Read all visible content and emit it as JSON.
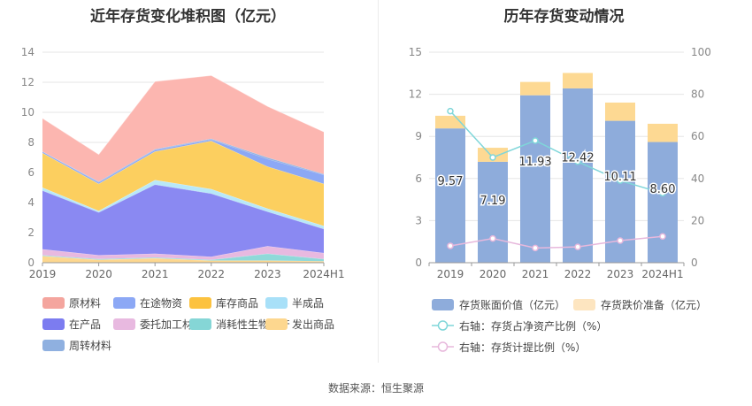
{
  "left_chart": {
    "title": "近年存货变化堆积图（亿元）",
    "chart_data": {
      "type": "area",
      "stacked": true,
      "categories": [
        "2019",
        "2020",
        "2021",
        "2022",
        "2023",
        "2024H1"
      ],
      "ylim": [
        0,
        14
      ],
      "yticks": [
        "0",
        "2",
        "4",
        "6",
        "8",
        "10",
        "12",
        "14"
      ],
      "series": [
        {
          "name": "发出商品",
          "color": "#fdd78f",
          "values": [
            0.45,
            0.2,
            0.3,
            0.15,
            0.15,
            0.1
          ]
        },
        {
          "name": "消耗性生物资产",
          "color": "#8fd9d9",
          "values": [
            0.05,
            0.05,
            0.05,
            0.05,
            0.45,
            0.15
          ]
        },
        {
          "name": "委托加工材料",
          "color": "#e8b9e0",
          "values": [
            0.4,
            0.25,
            0.25,
            0.2,
            0.5,
            0.4
          ]
        },
        {
          "name": "在产品",
          "color": "#8a89f2",
          "values": [
            3.9,
            2.85,
            4.6,
            4.2,
            2.3,
            1.6
          ]
        },
        {
          "name": "半成品",
          "color": "#b8e8f8",
          "values": [
            0.2,
            0.1,
            0.3,
            0.3,
            0.2,
            0.2
          ]
        },
        {
          "name": "库存商品",
          "color": "#fccf5f",
          "values": [
            2.3,
            1.8,
            1.9,
            3.2,
            2.8,
            2.8
          ]
        },
        {
          "name": "在途物资",
          "color": "#8ca8f5",
          "values": [
            0.1,
            0.1,
            0.1,
            0.1,
            0.5,
            0.6
          ]
        },
        {
          "name": "周转材料",
          "color": "#8fb0e0",
          "values": [
            0.0,
            0.05,
            0.05,
            0.05,
            0.1,
            0.05
          ]
        },
        {
          "name": "原材料",
          "color": "#fcb6b0",
          "values": [
            2.2,
            1.8,
            4.5,
            4.2,
            3.4,
            2.8
          ]
        }
      ],
      "legend": [
        {
          "name": "原材料",
          "color": "#f4a59e"
        },
        {
          "name": "在途物资",
          "color": "#8ca8f5"
        },
        {
          "name": "库存商品",
          "color": "#fcc23f"
        },
        {
          "name": "半成品",
          "color": "#a8e0f8"
        },
        {
          "name": "在产品",
          "color": "#7c7cf0"
        },
        {
          "name": "委托加工材料",
          "color": "#e8b9e0"
        },
        {
          "name": "消耗性生物资产",
          "color": "#85d6d6"
        },
        {
          "name": "发出商品",
          "color": "#fdd78f"
        },
        {
          "name": "周转材料",
          "color": "#8fb0e0"
        }
      ]
    }
  },
  "right_chart": {
    "title": "历年存货变动情况",
    "chart_data": {
      "type": "bar",
      "stacked": true,
      "categories": [
        "2019",
        "2020",
        "2021",
        "2022",
        "2023",
        "2024H1"
      ],
      "ylim": [
        0,
        15
      ],
      "yticks": [
        "0",
        "3",
        "6",
        "9",
        "12",
        "15"
      ],
      "y2lim": [
        0,
        100
      ],
      "y2ticks": [
        "0",
        "20",
        "40",
        "60",
        "80",
        "100"
      ],
      "series": [
        {
          "name": "存货账面价值（亿元）",
          "color": "#8eacdb",
          "values": [
            9.57,
            7.19,
            11.93,
            12.42,
            10.11,
            8.6
          ],
          "labels": [
            "9.57",
            "7.19",
            "11.93",
            "12.42",
            "10.11",
            "8.60"
          ]
        },
        {
          "name": "存货跌价准备（亿元）",
          "color": "#fdd993",
          "values": [
            0.9,
            1.0,
            0.95,
            1.1,
            1.3,
            1.3
          ]
        }
      ],
      "lines": [
        {
          "name": "右轴：存货占净资产比例（%）",
          "color": "#7fd6d9",
          "values": [
            72,
            50,
            58,
            48,
            39,
            33
          ]
        },
        {
          "name": "右轴：存货计提比例（%）",
          "color": "#e7b8dc",
          "values": [
            8,
            11.5,
            7,
            7.5,
            10.5,
            12.5
          ]
        }
      ],
      "legend": [
        {
          "name": "存货账面价值（亿元）",
          "color": "#8eacdb",
          "kind": "box"
        },
        {
          "name": "存货跌价准备（亿元）",
          "color": "#fde5c0",
          "kind": "box"
        },
        {
          "name": "右轴：存货占净资产比例（%）",
          "color": "#7fd6d9",
          "kind": "line"
        },
        {
          "name": "右轴：存货计提比例（%）",
          "color": "#e7b8dc",
          "kind": "line"
        }
      ]
    }
  },
  "source": "数据来源：恒生聚源"
}
